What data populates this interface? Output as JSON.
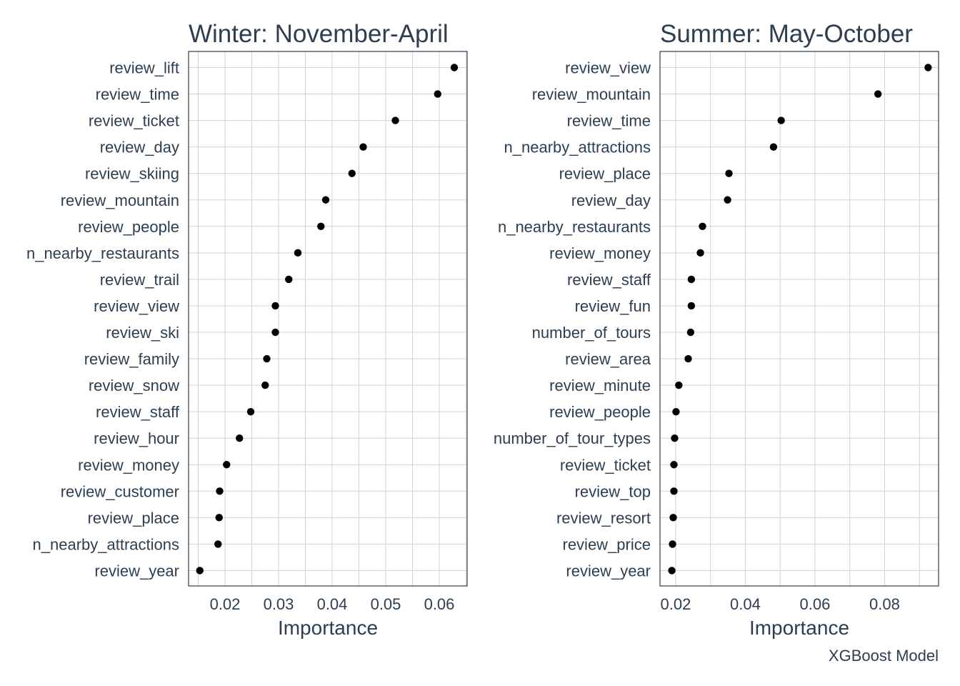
{
  "chart_data": [
    {
      "type": "scatter",
      "title": "Winter: November-April",
      "xlabel": "Importance",
      "xlim": [
        0.0132,
        0.0652
      ],
      "xticks": [
        0.02,
        0.03,
        0.04,
        0.05,
        0.06
      ],
      "xtick_labels": [
        "0.02",
        "0.03",
        "0.04",
        "0.05",
        "0.06"
      ],
      "grid": true,
      "categories": [
        "review_lift",
        "review_time",
        "review_ticket",
        "review_day",
        "review_skiing",
        "review_mountain",
        "review_people",
        "n_nearby_restaurants",
        "review_trail",
        "review_view",
        "review_ski",
        "review_family",
        "review_snow",
        "review_staff",
        "review_hour",
        "review_money",
        "review_customer",
        "review_place",
        "n_nearby_attractions",
        "review_year"
      ],
      "values": [
        0.0628,
        0.0597,
        0.0518,
        0.0458,
        0.0437,
        0.0388,
        0.0379,
        0.0336,
        0.0319,
        0.0294,
        0.0294,
        0.0278,
        0.0275,
        0.0248,
        0.0227,
        0.0203,
        0.019,
        0.0189,
        0.0187,
        0.0153
      ]
    },
    {
      "type": "scatter",
      "title": "Summer: May-October",
      "xlabel": "Importance",
      "xlim": [
        0.0155,
        0.0955
      ],
      "xticks": [
        0.02,
        0.04,
        0.06,
        0.08
      ],
      "xtick_labels": [
        "0.02",
        "0.04",
        "0.06",
        "0.08"
      ],
      "grid": true,
      "categories": [
        "review_view",
        "review_mountain",
        "review_time",
        "n_nearby_attractions",
        "review_place",
        "review_day",
        "n_nearby_restaurants",
        "review_money",
        "review_staff",
        "review_fun",
        "number_of_tours",
        "review_area",
        "review_minute",
        "review_people",
        "number_of_tour_types",
        "review_ticket",
        "review_top",
        "review_resort",
        "review_price",
        "review_year"
      ],
      "values": [
        0.0925,
        0.0781,
        0.0503,
        0.0481,
        0.0353,
        0.0349,
        0.0277,
        0.0271,
        0.0245,
        0.0245,
        0.0243,
        0.0236,
        0.0209,
        0.0201,
        0.0197,
        0.0195,
        0.0195,
        0.0193,
        0.0191,
        0.0189
      ]
    }
  ],
  "caption": "XGBoost Model"
}
